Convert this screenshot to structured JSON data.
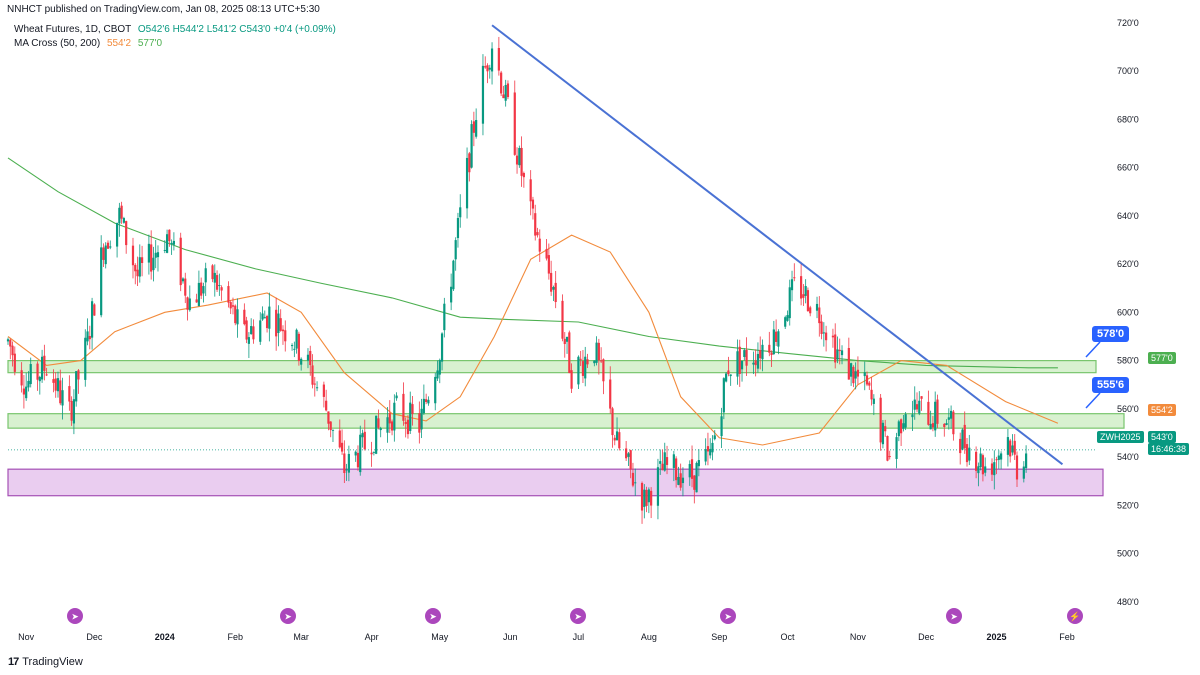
{
  "publisher": "NNHCT published on TradingView.com, Jan 08, 2025 08:13 UTC+5:30",
  "legend": {
    "symbol": "Wheat Futures, 1D, CBOT",
    "ohlc": "O542'6  H544'2  L541'2  C543'0  +0'4 (+0.09%)",
    "ma_name": "MA Cross (50, 200)",
    "ma50": "554'2",
    "ma200": "577'0"
  },
  "brand": "TradingView",
  "colors": {
    "up": "#089981",
    "down": "#f23645",
    "ma50": "#f28b3c",
    "ma200": "#4caf50",
    "trendline": "#4a72d4",
    "green_zone": "#d4f0cc",
    "purple_zone": "#e8c8ef"
  },
  "tags": {
    "ticker": "ZWH2025",
    "last": "543'0",
    "countdown": "16:46:38",
    "ma50": "554'2",
    "ma200": "577'0"
  },
  "callouts": [
    "578'0",
    "555'6"
  ],
  "chart_data": {
    "type": "candlestick",
    "x_ticks": [
      "Nov",
      "Dec",
      "2024",
      "Feb",
      "Mar",
      "Apr",
      "May",
      "Jun",
      "Jul",
      "Aug",
      "Sep",
      "Oct",
      "Nov",
      "Dec",
      "2025",
      "Feb"
    ],
    "y_ticks": [
      "480'0",
      "500'0",
      "520'0",
      "540'0",
      "560'0",
      "580'0",
      "600'0",
      "620'0",
      "640'0",
      "660'0",
      "680'0",
      "700'0",
      "720'0"
    ],
    "ylim": [
      470,
      722
    ],
    "xlim": [
      "2023-10-24",
      "2025-02-12"
    ],
    "zones": [
      {
        "kind": "resistance",
        "low": 575,
        "high": 580,
        "label": "578'0"
      },
      {
        "kind": "resistance",
        "low": 552,
        "high": 558,
        "label": "555'6"
      },
      {
        "kind": "support",
        "low": 524,
        "high": 535
      }
    ],
    "trendline": [
      {
        "date": "2024-05-24",
        "price": 719
      },
      {
        "date": "2025-01-30",
        "price": 537
      }
    ],
    "ma200": [
      [
        "2023-10-24",
        664
      ],
      [
        "2023-11-15",
        650
      ],
      [
        "2023-12-10",
        637
      ],
      [
        "2024-01-10",
        626
      ],
      [
        "2024-02-10",
        618
      ],
      [
        "2024-03-10",
        612
      ],
      [
        "2024-04-10",
        606
      ],
      [
        "2024-05-10",
        598
      ],
      [
        "2024-06-01",
        597
      ],
      [
        "2024-07-01",
        596
      ],
      [
        "2024-08-01",
        590
      ],
      [
        "2024-09-01",
        586
      ],
      [
        "2024-10-01",
        583
      ],
      [
        "2024-11-01",
        580
      ],
      [
        "2024-12-01",
        578
      ],
      [
        "2025-01-15",
        577
      ],
      [
        "2025-01-28",
        577
      ]
    ],
    "ma50": [
      [
        "2023-10-24",
        590
      ],
      [
        "2023-11-10",
        578
      ],
      [
        "2023-11-25",
        580
      ],
      [
        "2023-12-10",
        592
      ],
      [
        "2024-01-01",
        600
      ],
      [
        "2024-01-20",
        603
      ],
      [
        "2024-02-15",
        608
      ],
      [
        "2024-03-01",
        600
      ],
      [
        "2024-03-20",
        575
      ],
      [
        "2024-04-10",
        558
      ],
      [
        "2024-04-25",
        555
      ],
      [
        "2024-05-10",
        565
      ],
      [
        "2024-05-25",
        590
      ],
      [
        "2024-06-10",
        622
      ],
      [
        "2024-06-28",
        632
      ],
      [
        "2024-07-15",
        625
      ],
      [
        "2024-08-01",
        600
      ],
      [
        "2024-08-15",
        565
      ],
      [
        "2024-09-01",
        548
      ],
      [
        "2024-09-20",
        545
      ],
      [
        "2024-10-15",
        550
      ],
      [
        "2024-11-01",
        570
      ],
      [
        "2024-11-20",
        580
      ],
      [
        "2024-12-10",
        578
      ],
      [
        "2025-01-05",
        563
      ],
      [
        "2025-01-28",
        554
      ]
    ],
    "candle_path": [
      [
        "2023-10-24",
        588
      ],
      [
        "2023-11-01",
        570
      ],
      [
        "2023-11-10",
        578
      ],
      [
        "2023-11-20",
        558
      ],
      [
        "2023-11-28",
        588
      ],
      [
        "2023-12-05",
        628
      ],
      [
        "2023-12-12",
        640
      ],
      [
        "2023-12-20",
        615
      ],
      [
        "2024-01-02",
        632
      ],
      [
        "2024-01-12",
        605
      ],
      [
        "2024-01-22",
        615
      ],
      [
        "2024-02-05",
        590
      ],
      [
        "2024-02-16",
        600
      ],
      [
        "2024-02-26",
        590
      ],
      [
        "2024-03-04",
        578
      ],
      [
        "2024-03-12",
        560
      ],
      [
        "2024-03-20",
        535
      ],
      [
        "2024-04-01",
        548
      ],
      [
        "2024-04-12",
        560
      ],
      [
        "2024-04-22",
        553
      ],
      [
        "2024-05-01",
        585
      ],
      [
        "2024-05-10",
        640
      ],
      [
        "2024-05-18",
        690
      ],
      [
        "2024-05-24",
        712
      ],
      [
        "2024-06-01",
        680
      ],
      [
        "2024-06-10",
        640
      ],
      [
        "2024-06-20",
        610
      ],
      [
        "2024-06-28",
        575
      ],
      [
        "2024-07-08",
        585
      ],
      [
        "2024-07-18",
        545
      ],
      [
        "2024-07-30",
        522
      ],
      [
        "2024-08-08",
        536
      ],
      [
        "2024-08-20",
        532
      ],
      [
        "2024-08-28",
        540
      ],
      [
        "2024-09-05",
        578
      ],
      [
        "2024-09-15",
        582
      ],
      [
        "2024-09-25",
        590
      ],
      [
        "2024-10-05",
        612
      ],
      [
        "2024-10-15",
        600
      ],
      [
        "2024-10-25",
        580
      ],
      [
        "2024-11-05",
        568
      ],
      [
        "2024-11-15",
        540
      ],
      [
        "2024-11-22",
        562
      ],
      [
        "2024-12-02",
        558
      ],
      [
        "2024-12-10",
        555
      ],
      [
        "2024-12-18",
        546
      ],
      [
        "2024-12-28",
        535
      ],
      [
        "2025-01-06",
        548
      ],
      [
        "2025-01-10",
        536
      ],
      [
        "2025-01-14",
        543
      ]
    ]
  }
}
